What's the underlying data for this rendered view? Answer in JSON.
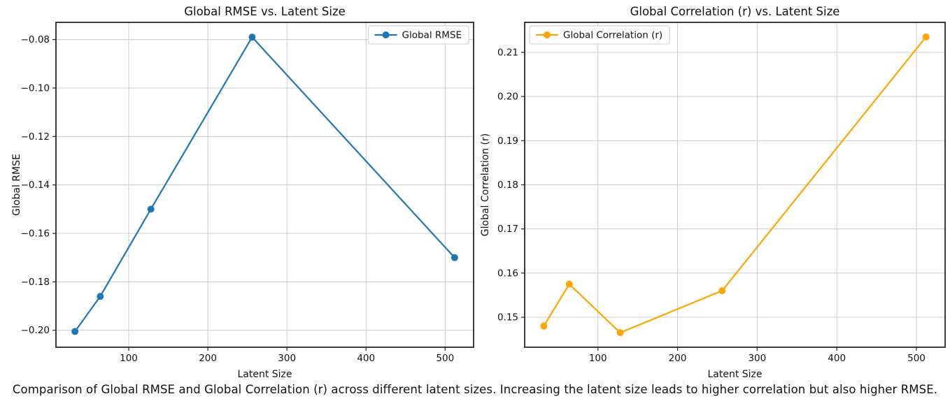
{
  "caption": "Comparison of Global RMSE and Global Correlation (r) across different latent sizes. Increasing the latent size leads to higher correlation but also higher RMSE.",
  "chart_data": [
    {
      "type": "line",
      "title": "Global RMSE vs. Latent Size",
      "xlabel": "Latent Size",
      "ylabel": "Global RMSE",
      "legend_label": "Global RMSE",
      "legend_position": "top-right",
      "line_color": "#1f77b4",
      "marker": "circle",
      "grid": true,
      "x": [
        32,
        64,
        128,
        256,
        512
      ],
      "y": [
        -0.2005,
        -0.186,
        -0.15,
        -0.079,
        -0.17
      ],
      "xticks": [
        100,
        200,
        300,
        400,
        500
      ],
      "yticks": [
        -0.2,
        -0.18,
        -0.16,
        -0.14,
        -0.12,
        -0.1,
        -0.08
      ],
      "y_decimals": 2,
      "xlim": [
        8,
        536
      ],
      "ylim": [
        -0.207,
        -0.0729
      ]
    },
    {
      "type": "line",
      "title": "Global Correlation (r) vs. Latent Size",
      "xlabel": "Latent Size",
      "ylabel": "Global Correlation (r)",
      "legend_label": "Global Correlation (r)",
      "legend_position": "top-left",
      "line_color": "#ffa500",
      "marker": "circle",
      "grid": true,
      "x": [
        32,
        64,
        128,
        256,
        512
      ],
      "y": [
        0.148,
        0.1575,
        0.1465,
        0.156,
        0.2135
      ],
      "xticks": [
        100,
        200,
        300,
        400,
        500
      ],
      "yticks": [
        0.15,
        0.16,
        0.17,
        0.18,
        0.19,
        0.2,
        0.21
      ],
      "y_decimals": 2,
      "xlim": [
        8,
        536
      ],
      "ylim": [
        0.1432,
        0.2168
      ]
    }
  ],
  "style": {
    "grid_color": "#cccccc",
    "frame_color": "#262626",
    "text_color": "#111111",
    "background": "#ffffff"
  }
}
